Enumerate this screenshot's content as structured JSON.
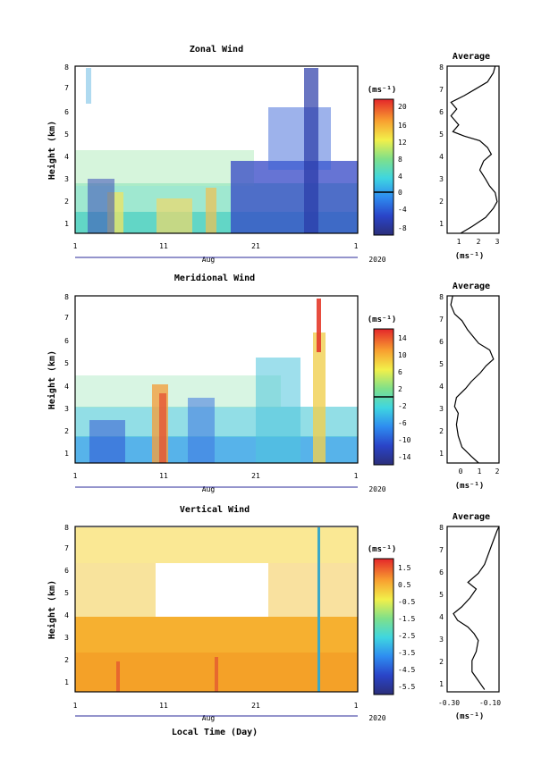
{
  "chart_data": [
    {
      "type": "heatmap",
      "title": "Zonal Wind",
      "ylabel": "Height (km)",
      "y_ticks": [
        "1",
        "2",
        "3",
        "4",
        "5",
        "6",
        "7",
        "8"
      ],
      "ylim": [
        0.6,
        8
      ],
      "x_ticks": [
        "1",
        "11",
        "21",
        "1"
      ],
      "month_label": "Aug",
      "year_label": "2020",
      "colorbar": {
        "unit": "(ms⁻¹)",
        "ticks": [
          "20",
          "16",
          "12",
          "8",
          "4",
          "0",
          "-4",
          "-8"
        ],
        "range": [
          -10,
          22
        ],
        "zero_line": 0
      },
      "profile": {
        "title": "Average",
        "xlabel": "(ms⁻¹)",
        "x_ticks": [
          "1",
          "2",
          "3"
        ],
        "xlim": [
          0.3,
          3.0
        ],
        "points": [
          [
            1.0,
            0.6
          ],
          [
            1.6,
            0.9
          ],
          [
            2.3,
            1.3
          ],
          [
            2.7,
            1.7
          ],
          [
            2.9,
            2.0
          ],
          [
            2.8,
            2.4
          ],
          [
            2.5,
            2.7
          ],
          [
            2.3,
            3.0
          ],
          [
            2.0,
            3.4
          ],
          [
            2.2,
            3.8
          ],
          [
            2.6,
            4.1
          ],
          [
            2.4,
            4.4
          ],
          [
            2.0,
            4.7
          ],
          [
            1.2,
            4.9
          ],
          [
            0.6,
            5.1
          ],
          [
            0.9,
            5.4
          ],
          [
            0.5,
            5.8
          ],
          [
            0.8,
            6.1
          ],
          [
            0.5,
            6.4
          ],
          [
            1.2,
            6.7
          ],
          [
            1.8,
            7.0
          ],
          [
            2.4,
            7.3
          ],
          [
            2.7,
            7.7
          ],
          [
            2.8,
            8.0
          ]
        ]
      }
    },
    {
      "type": "heatmap",
      "title": "Meridional Wind",
      "ylabel": "Height (km)",
      "y_ticks": [
        "1",
        "2",
        "3",
        "4",
        "5",
        "6",
        "7",
        "8"
      ],
      "ylim": [
        0.6,
        8
      ],
      "x_ticks": [
        "1",
        "11",
        "21",
        "1"
      ],
      "month_label": "Aug",
      "year_label": "2020",
      "colorbar": {
        "unit": "(ms⁻¹)",
        "ticks": [
          "14",
          "10",
          "6",
          "2",
          "-2",
          "-6",
          "-10",
          "-14"
        ],
        "range": [
          -16,
          16
        ],
        "zero_line": 0
      },
      "profile": {
        "title": "Average",
        "xlabel": "(ms⁻¹)",
        "x_ticks": [
          "0",
          "1",
          "2"
        ],
        "xlim": [
          -0.7,
          2.1
        ],
        "points": [
          [
            1.0,
            0.6
          ],
          [
            0.6,
            0.9
          ],
          [
            0.1,
            1.3
          ],
          [
            -0.1,
            1.8
          ],
          [
            -0.2,
            2.3
          ],
          [
            -0.1,
            2.8
          ],
          [
            -0.3,
            3.1
          ],
          [
            -0.2,
            3.5
          ],
          [
            0.3,
            3.9
          ],
          [
            0.6,
            4.2
          ],
          [
            1.1,
            4.6
          ],
          [
            1.4,
            4.9
          ],
          [
            1.8,
            5.2
          ],
          [
            1.6,
            5.6
          ],
          [
            1.0,
            5.9
          ],
          [
            0.7,
            6.2
          ],
          [
            0.4,
            6.5
          ],
          [
            0.1,
            6.9
          ],
          [
            -0.3,
            7.2
          ],
          [
            -0.5,
            7.6
          ],
          [
            -0.4,
            8.0
          ]
        ]
      }
    },
    {
      "type": "heatmap",
      "title": "Vertical Wind",
      "ylabel": "Height (km)",
      "xlabel": "Local Time (Day)",
      "y_ticks": [
        "1",
        "2",
        "3",
        "4",
        "5",
        "6",
        "7",
        "8"
      ],
      "ylim": [
        0.6,
        8
      ],
      "x_ticks": [
        "1",
        "11",
        "21",
        "1"
      ],
      "month_label": "Aug",
      "year_label": "2020",
      "colorbar": {
        "unit": "(ms⁻¹)",
        "ticks": [
          "1.5",
          "0.5",
          "-0.5",
          "-1.5",
          "-2.5",
          "-3.5",
          "-4.5",
          "-5.5"
        ],
        "range": [
          -6.5,
          2.0
        ]
      },
      "profile": {
        "title": "Average",
        "xlabel": "(ms⁻¹)",
        "x_ticks": [
          "-0.30",
          "-0.10"
        ],
        "xlim": [
          -0.32,
          -0.07
        ],
        "points": [
          [
            -0.14,
            0.7
          ],
          [
            -0.17,
            1.1
          ],
          [
            -0.2,
            1.5
          ],
          [
            -0.2,
            2.0
          ],
          [
            -0.18,
            2.4
          ],
          [
            -0.17,
            2.9
          ],
          [
            -0.19,
            3.2
          ],
          [
            -0.22,
            3.5
          ],
          [
            -0.27,
            3.8
          ],
          [
            -0.29,
            4.1
          ],
          [
            -0.25,
            4.4
          ],
          [
            -0.21,
            4.8
          ],
          [
            -0.18,
            5.2
          ],
          [
            -0.22,
            5.5
          ],
          [
            -0.17,
            5.9
          ],
          [
            -0.14,
            6.3
          ],
          [
            -0.12,
            6.8
          ],
          [
            -0.1,
            7.3
          ],
          [
            -0.08,
            7.8
          ],
          [
            -0.07,
            8.0
          ]
        ]
      }
    }
  ]
}
